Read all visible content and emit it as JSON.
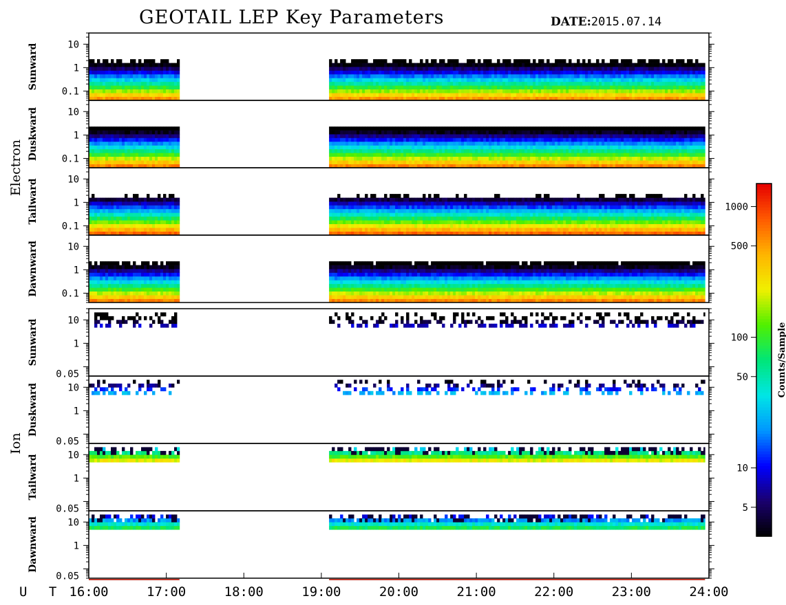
{
  "header": {
    "title": "GEOTAIL LEP Key Parameters",
    "date_label": "DATE:",
    "date_value": "2015.07.14"
  },
  "x_axis": {
    "label": "U T",
    "ticks": [
      "16:00",
      "17:00",
      "18:00",
      "19:00",
      "20:00",
      "21:00",
      "22:00",
      "23:00",
      "24:00"
    ],
    "range_hours": [
      16,
      24
    ]
  },
  "colorbar": {
    "label": "Counts/Sample",
    "ticks": [
      "5",
      "10",
      "50",
      "100",
      "500",
      "1000"
    ],
    "tick_values": [
      5,
      10,
      50,
      100,
      500,
      1000
    ],
    "range": [
      3,
      1500
    ],
    "scale": "log",
    "colors": [
      "#000000",
      "#1a006e",
      "#0000ff",
      "#0096ff",
      "#00e6e6",
      "#00e678",
      "#50f000",
      "#f0f000",
      "#ffb400",
      "#ff5a00",
      "#e60000"
    ]
  },
  "groups": [
    {
      "name": "Electron",
      "panels": [
        "Sunward",
        "Duskward",
        "Tailward",
        "Dawnward"
      ]
    },
    {
      "name": "Ion",
      "panels": [
        "Sunward",
        "Duskward",
        "Tailward",
        "Dawnward"
      ]
    }
  ],
  "chart_data": {
    "type": "heatmap",
    "title": "GEOTAIL LEP Key Parameters",
    "xlabel": "U T",
    "x_range_hours": [
      16,
      24
    ],
    "z_label": "Counts/Sample",
    "z_scale": "log",
    "data_coverage_hours": [
      [
        16.0,
        17.17
      ],
      [
        19.1,
        23.95
      ]
    ],
    "panels": [
      {
        "species": "Electron",
        "direction": "Sunward",
        "y_ticks": [
          "10",
          "1",
          "0.1"
        ],
        "y_scale": "log",
        "y_range": [
          0.04,
          30
        ],
        "low_energy_counts": 700,
        "upper_edge_energy": 1.5
      },
      {
        "species": "Electron",
        "direction": "Duskward",
        "y_ticks": [
          "10",
          "1",
          "0.1"
        ],
        "y_scale": "log",
        "y_range": [
          0.04,
          30
        ],
        "low_energy_counts": 800,
        "upper_edge_energy": 1.7
      },
      {
        "species": "Electron",
        "direction": "Tailward",
        "y_ticks": [
          "10",
          "1",
          "0.1"
        ],
        "y_scale": "log",
        "y_range": [
          0.04,
          30
        ],
        "low_energy_counts": 1000,
        "upper_edge_energy": 1.4
      },
      {
        "species": "Electron",
        "direction": "Dawnward",
        "y_ticks": [
          "10",
          "1",
          "0.1"
        ],
        "y_scale": "log",
        "y_range": [
          0.04,
          30
        ],
        "low_energy_counts": 800,
        "upper_edge_energy": 1.6
      },
      {
        "species": "Ion",
        "direction": "Sunward",
        "y_ticks": [
          "10",
          "1",
          "0.05"
        ],
        "y_scale": "log",
        "y_range": [
          0.04,
          30
        ],
        "peak_counts": 10,
        "lower_edge_energy": 5
      },
      {
        "species": "Ion",
        "direction": "Duskward",
        "y_ticks": [
          "10",
          "1",
          "0.05"
        ],
        "y_scale": "log",
        "y_range": [
          0.04,
          30
        ],
        "peak_counts": 30,
        "lower_edge_energy": 5
      },
      {
        "species": "Ion",
        "direction": "Tailward",
        "y_ticks": [
          "10",
          "1",
          "0.05"
        ],
        "y_scale": "log",
        "y_range": [
          0.04,
          30
        ],
        "peak_counts": 300,
        "lower_edge_energy": 5
      },
      {
        "species": "Ion",
        "direction": "Dawnward",
        "y_ticks": [
          "10",
          "1",
          "0.05"
        ],
        "y_scale": "log",
        "y_range": [
          0.04,
          30
        ],
        "peak_counts": 100,
        "lower_edge_energy": 5
      }
    ]
  }
}
